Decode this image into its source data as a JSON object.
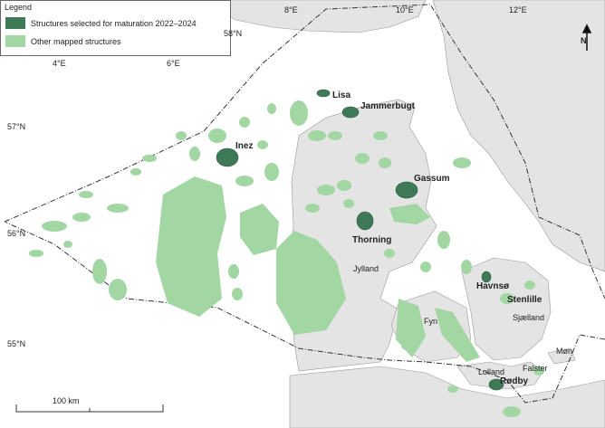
{
  "legend": {
    "title": "Legend",
    "items": [
      {
        "label": "Structures selected for maturation 2022–2024",
        "color": "#3e7a57"
      },
      {
        "label": "Other mapped structures",
        "color": "#a2d6a2"
      }
    ]
  },
  "graticule": {
    "latitudes": [
      "58°N",
      "57°N",
      "56°N",
      "55°N"
    ],
    "longitudes": [
      "4°E",
      "6°E",
      "8°E",
      "10°E",
      "12°E"
    ]
  },
  "structures": [
    "Lisa",
    "Jammerbugt",
    "Inez",
    "Gassum",
    "Thorning",
    "Havnsø",
    "Stenlille",
    "Rødby"
  ],
  "regions": [
    "Jylland",
    "Fyn",
    "Sjælland",
    "Lolland",
    "Falster",
    "Møn"
  ],
  "scale_bar": "100 km",
  "north_arrow": "N"
}
